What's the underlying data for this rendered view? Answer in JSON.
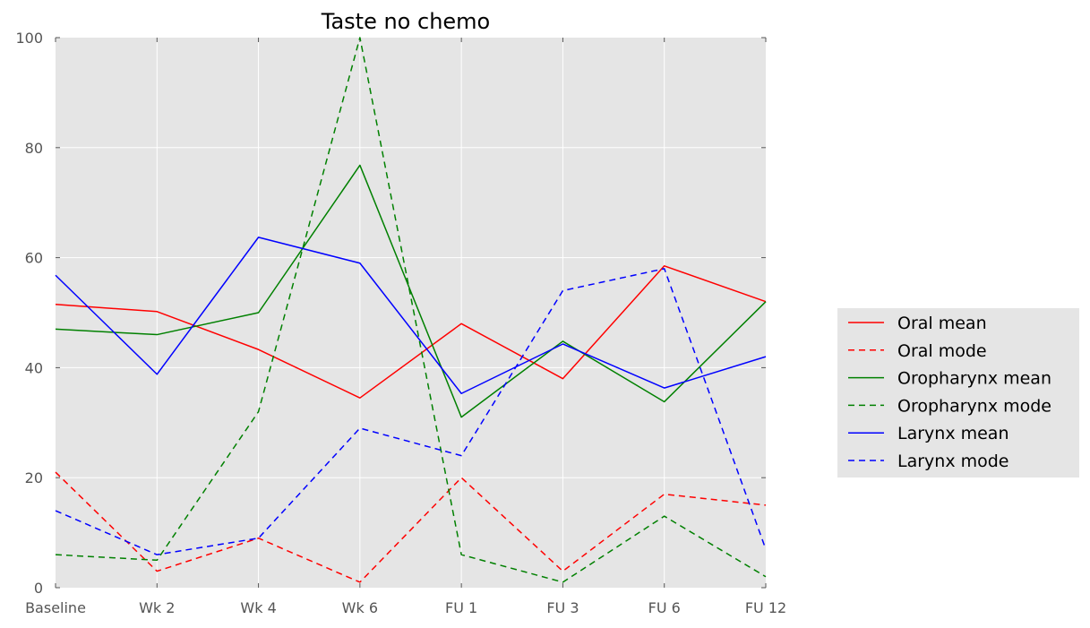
{
  "chart_data": {
    "type": "line",
    "title": "Taste no chemo",
    "xlabel": "",
    "ylabel": "",
    "categories": [
      "Baseline",
      "Wk 2",
      "Wk 4",
      "Wk 6",
      "FU 1",
      "FU 3",
      "FU 6",
      "FU 12"
    ],
    "ylim": [
      0,
      100
    ],
    "yticks": [
      0,
      20,
      40,
      60,
      80,
      100
    ],
    "grid": true,
    "legend_position": "right",
    "series": [
      {
        "name": "Oral mean",
        "color": "#ff0000",
        "dash": "solid",
        "values": [
          51.5,
          50.2,
          43.3,
          34.5,
          48.0,
          38.0,
          58.5,
          52.0
        ]
      },
      {
        "name": "Oral mode",
        "color": "#ff0000",
        "dash": "dashed",
        "values": [
          21,
          3,
          9,
          1,
          20,
          3,
          17,
          15
        ]
      },
      {
        "name": "Oropharynx mean",
        "color": "#008000",
        "dash": "solid",
        "values": [
          47.0,
          46.0,
          50.0,
          76.8,
          31.0,
          44.8,
          33.8,
          52.0
        ]
      },
      {
        "name": "Oropharynx mode",
        "color": "#008000",
        "dash": "dashed",
        "values": [
          6,
          5,
          32,
          100,
          6,
          1,
          13,
          2
        ]
      },
      {
        "name": "Larynx mean",
        "color": "#0000ff",
        "dash": "solid",
        "values": [
          56.8,
          38.8,
          63.7,
          59.0,
          35.3,
          44.3,
          36.3,
          42.0
        ]
      },
      {
        "name": "Larynx mode",
        "color": "#0000ff",
        "dash": "dashed",
        "values": [
          14,
          6,
          9,
          29,
          24,
          54,
          58,
          7
        ]
      }
    ]
  }
}
